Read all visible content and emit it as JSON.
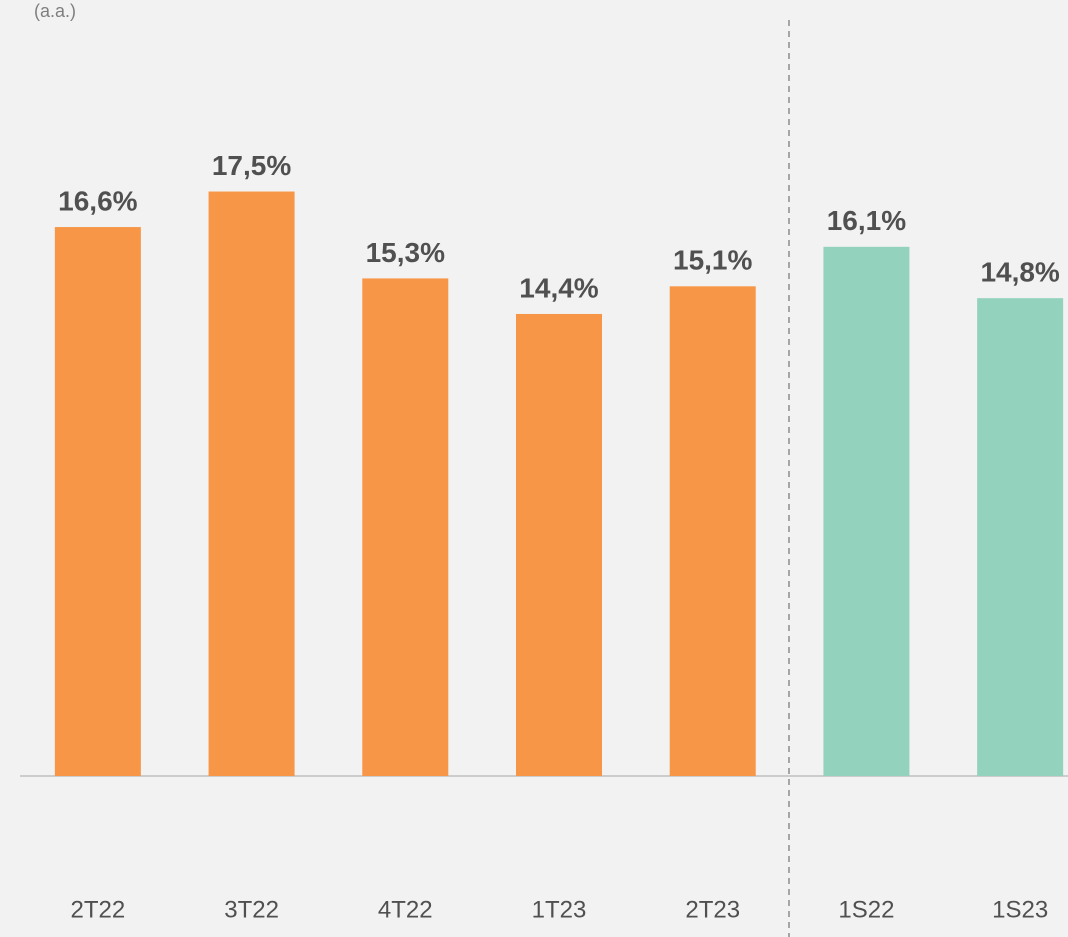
{
  "chart_data": {
    "type": "bar",
    "subtitle": "(a.a.)",
    "categories": [
      "2T22",
      "3T22",
      "4T22",
      "1T23",
      "2T23",
      "1S22",
      "1S23"
    ],
    "values": [
      16.6,
      17.5,
      15.3,
      14.4,
      15.1,
      16.1,
      14.8
    ],
    "value_labels": [
      "16,6%",
      "17,5%",
      "15,3%",
      "14,4%",
      "15,1%",
      "16,1%",
      "14,8%"
    ],
    "colors": [
      "#f79646",
      "#f79646",
      "#f79646",
      "#f79646",
      "#f79646",
      "#93d2bc",
      "#93d2bc"
    ],
    "ylim": [
      2.7,
      22.35
    ]
  }
}
